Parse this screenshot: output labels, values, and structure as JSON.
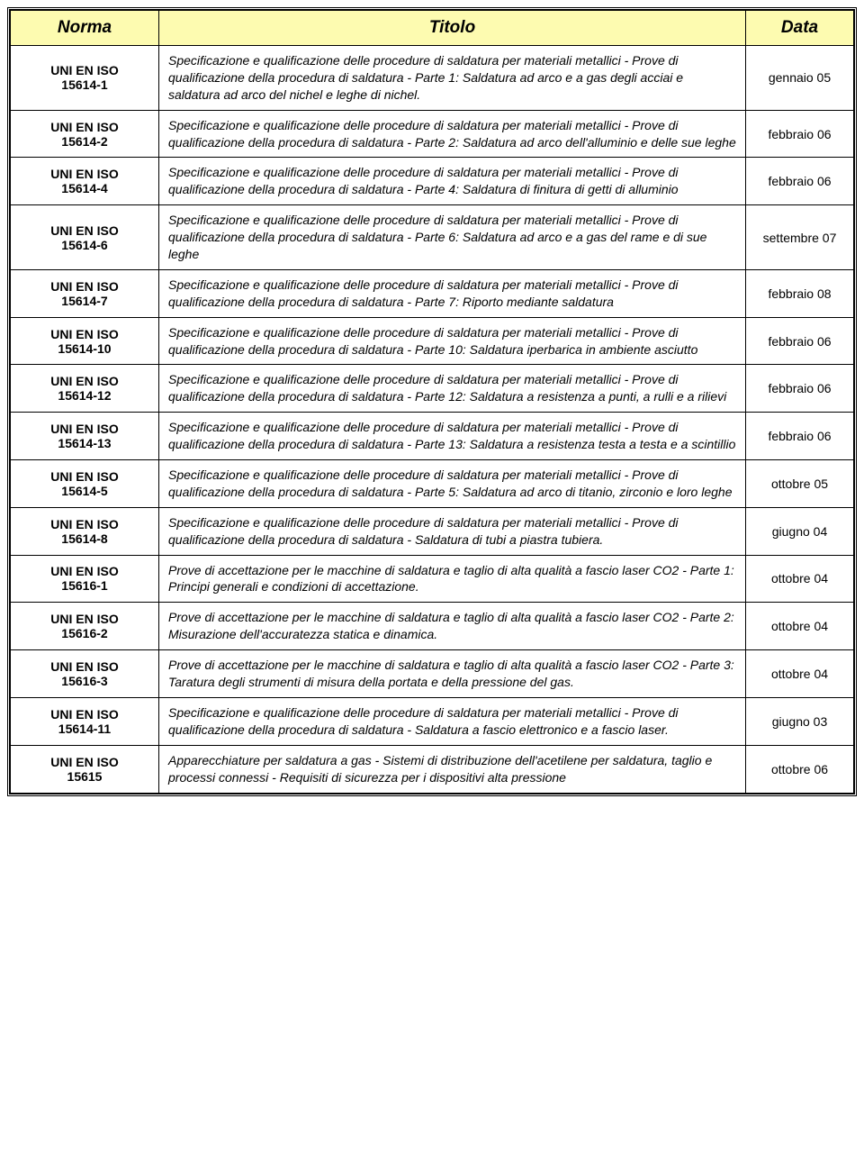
{
  "headers": {
    "norma": "Norma",
    "titolo": "Titolo",
    "data": "Data"
  },
  "rows": [
    {
      "norma": "UNI EN ISO 15614-1",
      "titolo": "Specificazione e qualificazione delle procedure di saldatura per materiali metallici - Prove di qualificazione della procedura di saldatura - Parte 1: Saldatura ad arco e a gas degli acciai e saldatura ad arco del nichel e leghe di nichel.",
      "data": "gennaio 05"
    },
    {
      "norma": "UNI EN ISO 15614-2",
      "titolo": "Specificazione e qualificazione delle procedure di saldatura per materiali metallici - Prove di qualificazione della procedura di saldatura - Parte 2: Saldatura ad arco dell'alluminio e delle sue leghe",
      "data": "febbraio 06"
    },
    {
      "norma": "UNI EN ISO 15614-4",
      "titolo": "Specificazione e qualificazione delle procedure di saldatura per materiali metallici - Prove di qualificazione della procedura di saldatura - Parte 4: Saldatura di finitura di getti di alluminio",
      "data": "febbraio 06"
    },
    {
      "norma": "UNI EN ISO 15614-6",
      "titolo": "Specificazione e qualificazione delle procedure di saldatura per materiali metallici - Prove di qualificazione della procedura di saldatura - Parte 6: Saldatura ad arco e a gas del rame e di sue leghe",
      "data": "settembre 07"
    },
    {
      "norma": "UNI EN ISO 15614-7",
      "titolo": "Specificazione e qualificazione delle procedure di saldatura per materiali metallici - Prove di qualificazione della procedura di saldatura - Parte 7: Riporto mediante saldatura",
      "data": "febbraio 08"
    },
    {
      "norma": "UNI EN ISO 15614-10",
      "titolo": "Specificazione e qualificazione delle procedure di saldatura per materiali metallici - Prove di qualificazione della procedura di saldatura - Parte 10: Saldatura iperbarica in ambiente asciutto",
      "data": "febbraio 06"
    },
    {
      "norma": "UNI EN ISO 15614-12",
      "titolo": "Specificazione e qualificazione delle procedure di saldatura per materiali metallici - Prove di qualificazione della procedura di saldatura - Parte 12: Saldatura a resistenza a punti, a rulli e a rilievi",
      "data": "febbraio 06"
    },
    {
      "norma": "UNI EN ISO 15614-13",
      "titolo": "Specificazione e qualificazione delle procedure di saldatura per materiali metallici - Prove di qualificazione della procedura di saldatura - Parte 13: Saldatura a resistenza testa a testa e a scintillio",
      "data": "febbraio 06"
    },
    {
      "norma": "UNI EN ISO 15614-5",
      "titolo": "Specificazione e qualificazione delle procedure di saldatura per materiali metallici - Prove di qualificazione della procedura di saldatura - Parte 5: Saldatura ad arco di titanio, zirconio e loro leghe",
      "data": "ottobre 05"
    },
    {
      "norma": "UNI EN ISO 15614-8",
      "titolo": "Specificazione e qualificazione delle procedure di saldatura per materiali metallici - Prove di qualificazione della procedura di saldatura - Saldatura di tubi a piastra tubiera.",
      "data": "giugno 04"
    },
    {
      "norma": "UNI EN ISO 15616-1",
      "titolo": "Prove di accettazione per le macchine di saldatura e taglio di alta qualità a fascio laser CO2 - Parte 1: Principi generali e condizioni di accettazione.",
      "data": "ottobre 04"
    },
    {
      "norma": "UNI EN ISO 15616-2",
      "titolo": "Prove di accettazione per le macchine di saldatura e taglio di alta qualità a fascio laser CO2 - Parte 2: Misurazione dell'accuratezza statica e dinamica.",
      "data": "ottobre 04"
    },
    {
      "norma": "UNI EN ISO 15616-3",
      "titolo": "Prove di accettazione per le macchine di saldatura e taglio di alta qualità a fascio laser CO2 - Parte 3: Taratura degli strumenti di misura della portata e della pressione del gas.",
      "data": "ottobre 04"
    },
    {
      "norma": "UNI EN ISO 15614-11",
      "titolo": "Specificazione e qualificazione delle procedure di saldatura per materiali metallici - Prove di qualificazione della procedura di saldatura - Saldatura a fascio elettronico e a fascio laser.",
      "data": "giugno 03"
    },
    {
      "norma": "UNI EN ISO 15615",
      "titolo": "Apparecchiature per saldatura a gas - Sistemi di distribuzione dell'acetilene per saldatura, taglio e processi connessi - Requisiti di sicurezza per i dispositivi alta pressione",
      "data": "ottobre 06"
    }
  ],
  "style": {
    "header_bg": "#fdfbb0",
    "border_color": "#000000",
    "font_family": "Arial, Helvetica, sans-serif",
    "header_fontsize": 19,
    "body_fontsize": 14,
    "col_widths": {
      "norma": 165,
      "data": 120
    }
  }
}
